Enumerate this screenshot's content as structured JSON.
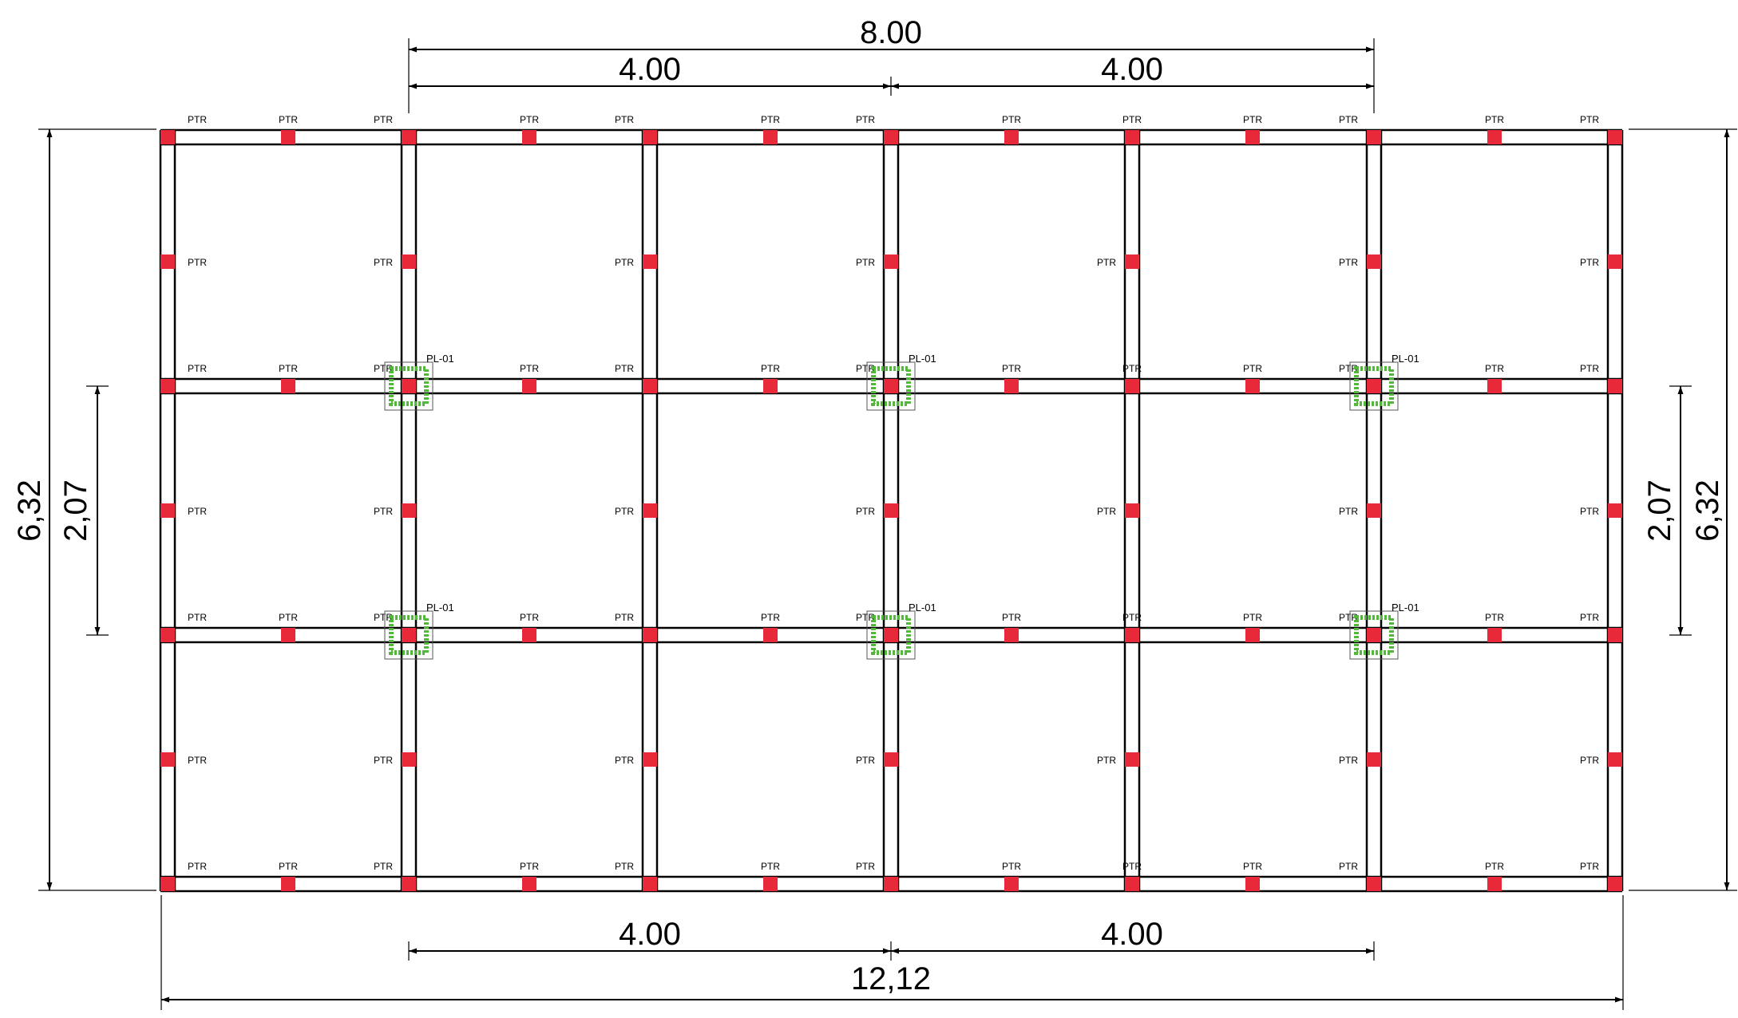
{
  "dimensions": {
    "top_total": "8.00",
    "top_left": "4.00",
    "top_right": "4.00",
    "bottom_left": "4.00",
    "bottom_right": "4.00",
    "bottom_total": "12,12",
    "left_total": "6,32",
    "left_inner": "2,07",
    "right_inner": "2,07",
    "right_total": "6,32"
  },
  "labels": {
    "ptr": "PTR",
    "pl": "PL-01"
  },
  "colors": {
    "line": "#000000",
    "pile_marker": "#e8293a",
    "footing_marker": "#52b83a"
  }
}
